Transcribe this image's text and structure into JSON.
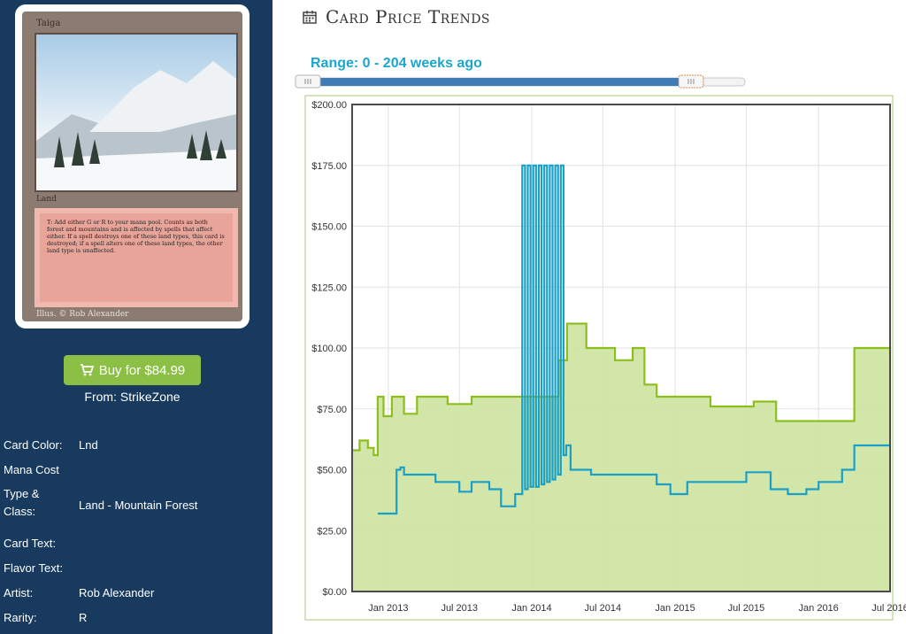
{
  "card": {
    "name": "Taiga",
    "type_line": "Land",
    "rules_text": "T: Add either G or R to your mana pool. Counts as both forest and mountains and is affected by spells that affect either. If a spell destroys one of these land types, this card is destroyed; if a spell alters one of these land types, the other land type is unaffected.",
    "artist_line": "Illus. © Rob Alexander"
  },
  "buy": {
    "label": "Buy for $84.99",
    "from": "From: StrikeZone",
    "icon": "cart-icon"
  },
  "details": [
    {
      "label": "Card Color:",
      "value": "Lnd"
    },
    {
      "label": "Mana Cost",
      "value": ""
    },
    {
      "label": "Type & Class:",
      "value": "Land - Mountain Forest"
    },
    {
      "label": "Card Text:",
      "value": ""
    },
    {
      "label": "Flavor Text:",
      "value": ""
    },
    {
      "label": "Artist:",
      "value": "Rob Alexander"
    },
    {
      "label": "Rarity:",
      "value": "R"
    }
  ],
  "header": {
    "title": "Card Price Trends",
    "icon": "calendar-icon"
  },
  "range": {
    "label": "Range: 0 - 204 weeks ago",
    "min_weeks": 0,
    "max_weeks": 204,
    "selected_from_weeks": 0,
    "selected_to_weeks": 204
  },
  "colors": {
    "sidebar": "#173a5e",
    "buy_button": "#8cbf45",
    "range_text": "#1aa6cf",
    "slider_fill": "#3f7bb5",
    "green_series": "#8cbf1e",
    "green_fill": "#cde3a0",
    "blue_series": "#1aa0c6"
  },
  "chart_data": {
    "type": "area",
    "title": "",
    "xlabel": "",
    "ylabel": "",
    "ylim": [
      0,
      200
    ],
    "xlim": [
      "2012-10-01",
      "2016-07-01"
    ],
    "y_ticks": [
      "$0.00",
      "$25.00",
      "$50.00",
      "$75.00",
      "$100.00",
      "$125.00",
      "$150.00",
      "$175.00",
      "$200.00"
    ],
    "y_tick_values": [
      0,
      25,
      50,
      75,
      100,
      125,
      150,
      175,
      200
    ],
    "x_ticks": [
      "Jan 2013",
      "Jul 2013",
      "Jan 2014",
      "Jul 2014",
      "Jan 2015",
      "Jul 2015",
      "Jan 2016",
      "Jul 2016"
    ],
    "x_tick_dates": [
      "2013-01-01",
      "2013-07-01",
      "2014-01-01",
      "2014-07-01",
      "2015-01-01",
      "2015-07-01",
      "2016-01-01",
      "2016-07-01"
    ],
    "grid": true,
    "legend": "none",
    "series": [
      {
        "style": "area",
        "points": [
          [
            "2012-10-01",
            58
          ],
          [
            "2012-10-20",
            62
          ],
          [
            "2012-11-10",
            59
          ],
          [
            "2012-11-25",
            56
          ],
          [
            "2012-12-05",
            80
          ],
          [
            "2012-12-20",
            72
          ],
          [
            "2013-01-10",
            80
          ],
          [
            "2013-02-10",
            73
          ],
          [
            "2013-03-15",
            80
          ],
          [
            "2013-05-01",
            80
          ],
          [
            "2013-06-01",
            77
          ],
          [
            "2013-08-01",
            80
          ],
          [
            "2013-10-01",
            80
          ],
          [
            "2013-12-01",
            80
          ],
          [
            "2014-01-15",
            80
          ],
          [
            "2014-02-25",
            80
          ],
          [
            "2014-03-10",
            95
          ],
          [
            "2014-04-01",
            110
          ],
          [
            "2014-05-20",
            100
          ],
          [
            "2014-06-20",
            100
          ],
          [
            "2014-08-01",
            95
          ],
          [
            "2014-09-15",
            100
          ],
          [
            "2014-10-15",
            85
          ],
          [
            "2014-11-15",
            80
          ],
          [
            "2015-02-01",
            80
          ],
          [
            "2015-04-01",
            76
          ],
          [
            "2015-06-01",
            76
          ],
          [
            "2015-07-20",
            78
          ],
          [
            "2015-09-15",
            70
          ],
          [
            "2015-12-01",
            70
          ],
          [
            "2016-03-15",
            70
          ],
          [
            "2016-04-01",
            100
          ],
          [
            "2016-06-10",
            100
          ],
          [
            "2016-07-01",
            97
          ]
        ]
      },
      {
        "style": "line",
        "points": [
          [
            "2012-12-05",
            32
          ],
          [
            "2013-01-15",
            32
          ],
          [
            "2013-01-22",
            50
          ],
          [
            "2013-02-01",
            51
          ],
          [
            "2013-02-10",
            48
          ],
          [
            "2013-04-01",
            48
          ],
          [
            "2013-05-01",
            45
          ],
          [
            "2013-06-15",
            45
          ],
          [
            "2013-07-01",
            41
          ],
          [
            "2013-08-01",
            45
          ],
          [
            "2013-09-15",
            42
          ],
          [
            "2013-10-15",
            35
          ],
          [
            "2013-11-20",
            40
          ],
          [
            "2013-12-01",
            40
          ],
          [
            "2013-12-08",
            175
          ],
          [
            "2013-12-15",
            42
          ],
          [
            "2013-12-22",
            175
          ],
          [
            "2013-12-29",
            43
          ],
          [
            "2014-01-05",
            175
          ],
          [
            "2014-01-12",
            43
          ],
          [
            "2014-01-19",
            175
          ],
          [
            "2014-01-26",
            44
          ],
          [
            "2014-02-02",
            175
          ],
          [
            "2014-02-09",
            45
          ],
          [
            "2014-02-16",
            175
          ],
          [
            "2014-02-23",
            46
          ],
          [
            "2014-03-02",
            175
          ],
          [
            "2014-03-09",
            48
          ],
          [
            "2014-03-16",
            175
          ],
          [
            "2014-03-23",
            56
          ],
          [
            "2014-03-30",
            60
          ],
          [
            "2014-04-10",
            50
          ],
          [
            "2014-06-01",
            48
          ],
          [
            "2014-09-15",
            48
          ],
          [
            "2014-11-15",
            44
          ],
          [
            "2014-12-20",
            40
          ],
          [
            "2015-02-01",
            45
          ],
          [
            "2015-05-01",
            45
          ],
          [
            "2015-07-01",
            49
          ],
          [
            "2015-09-01",
            42
          ],
          [
            "2015-10-15",
            40
          ],
          [
            "2015-12-01",
            42
          ],
          [
            "2016-01-01",
            45
          ],
          [
            "2016-03-01",
            50
          ],
          [
            "2016-04-01",
            60
          ],
          [
            "2016-07-01",
            60
          ]
        ]
      }
    ]
  }
}
